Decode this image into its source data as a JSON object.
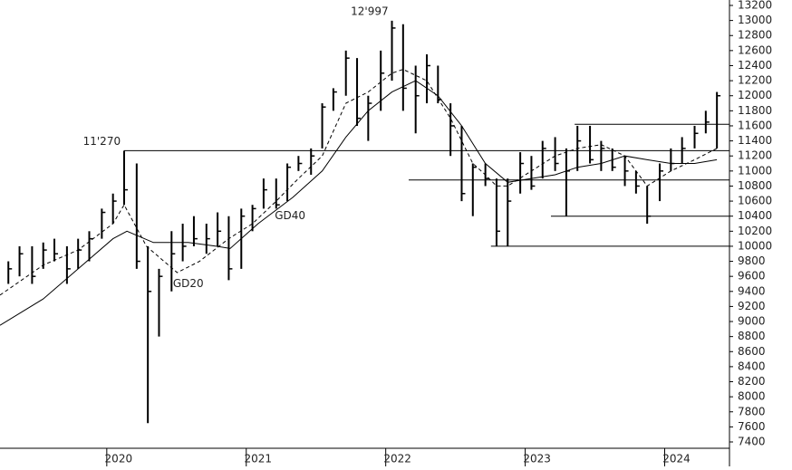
{
  "chart_data": {
    "type": "ohlc",
    "xlim": [
      2019.15,
      2024.38
    ],
    "xticks": [
      2020,
      2021,
      2022,
      2023,
      2024
    ],
    "ylim": [
      7400,
      13200
    ],
    "yticks": [
      7400,
      7600,
      7800,
      8000,
      8200,
      8400,
      8600,
      8800,
      9000,
      9200,
      9400,
      9600,
      9800,
      10000,
      10200,
      10400,
      10600,
      10800,
      11000,
      11200,
      11400,
      11600,
      11800,
      12000,
      12200,
      12400,
      12600,
      12800,
      13000,
      13200
    ],
    "color": "#000000",
    "x": [
      2019.21,
      2019.29,
      2019.38,
      2019.46,
      2019.54,
      2019.63,
      2019.71,
      2019.79,
      2019.88,
      2019.96,
      2020.04,
      2020.13,
      2020.21,
      2020.29,
      2020.38,
      2020.46,
      2020.54,
      2020.63,
      2020.71,
      2020.79,
      2020.88,
      2020.96,
      2021.04,
      2021.13,
      2021.21,
      2021.29,
      2021.38,
      2021.46,
      2021.54,
      2021.63,
      2021.71,
      2021.79,
      2021.88,
      2021.96,
      2022.04,
      2022.13,
      2022.21,
      2022.29,
      2022.38,
      2022.46,
      2022.54,
      2022.63,
      2022.71,
      2022.79,
      2022.88,
      2022.96,
      2023.04,
      2023.13,
      2023.21,
      2023.29,
      2023.38,
      2023.46,
      2023.54,
      2023.63,
      2023.71,
      2023.79,
      2023.88,
      2023.96,
      2024.04,
      2024.13,
      2024.21,
      2024.29
    ],
    "high": [
      9800,
      10000,
      10000,
      10050,
      10100,
      10000,
      10100,
      10200,
      10500,
      10700,
      11270,
      11100,
      10000,
      9700,
      10200,
      10300,
      10400,
      10300,
      10450,
      10400,
      10500,
      10550,
      10900,
      10900,
      11100,
      11200,
      11300,
      11900,
      12100,
      12600,
      12500,
      12000,
      12600,
      12997,
      12950,
      12400,
      12550,
      12400,
      11900,
      11600,
      11100,
      11100,
      10900,
      10900,
      11250,
      11200,
      11400,
      11450,
      11300,
      11600,
      11600,
      11400,
      11300,
      11200,
      11000,
      10800,
      11100,
      11300,
      11450,
      11600,
      11800,
      12050
    ],
    "low": [
      9500,
      9600,
      9500,
      9700,
      9800,
      9500,
      9700,
      9800,
      10100,
      10300,
      10550,
      9700,
      7650,
      8800,
      9400,
      9800,
      10000,
      9900,
      10000,
      9550,
      9700,
      10200,
      10500,
      10500,
      10600,
      11000,
      10950,
      11300,
      11800,
      12000,
      11600,
      11400,
      11800,
      12200,
      11800,
      11500,
      11900,
      11900,
      11200,
      10600,
      10400,
      10800,
      10000,
      10000,
      10700,
      10750,
      10900,
      11000,
      10400,
      11000,
      11100,
      11000,
      11000,
      10800,
      10700,
      10300,
      10600,
      11000,
      11100,
      11300,
      11500,
      11300
    ],
    "close": [
      9700,
      9900,
      9600,
      9950,
      9900,
      9700,
      9950,
      10100,
      10450,
      10600,
      10750,
      9800,
      9400,
      9600,
      9900,
      10000,
      10100,
      10100,
      10200,
      9700,
      10400,
      10500,
      10750,
      10550,
      11050,
      11100,
      11200,
      11850,
      12050,
      12500,
      11700,
      11900,
      12300,
      12900,
      12100,
      12000,
      12400,
      11950,
      11600,
      10700,
      11050,
      10900,
      10200,
      10600,
      11100,
      10800,
      11300,
      11100,
      11000,
      11400,
      11150,
      11300,
      11050,
      11000,
      10800,
      10400,
      11000,
      11100,
      11300,
      11500,
      11650,
      12000
    ],
    "series": [
      {
        "name": "GD20",
        "color": "#000000",
        "dashed": true,
        "label_x": 2020.5,
        "label_y": 9500,
        "x": [
          2019.15,
          2019.46,
          2019.71,
          2019.96,
          2020.04,
          2020.2,
          2020.42,
          2020.58,
          2020.79,
          2020.96,
          2021.13,
          2021.29,
          2021.46,
          2021.63,
          2021.79,
          2021.96,
          2022.04,
          2022.21,
          2022.38,
          2022.54,
          2022.63,
          2022.71,
          2022.79,
          2022.96,
          2023.13,
          2023.29,
          2023.46,
          2023.63,
          2023.79,
          2023.96,
          2024.13,
          2024.29
        ],
        "values": [
          9350,
          9750,
          9950,
          10300,
          10550,
          10000,
          9650,
          9800,
          10100,
          10300,
          10600,
          10900,
          11200,
          11900,
          12050,
          12300,
          12350,
          12200,
          11700,
          11100,
          10950,
          10800,
          10800,
          11000,
          11200,
          11300,
          11350,
          11200,
          10800,
          11000,
          11150,
          11300
        ]
      },
      {
        "name": "GD40",
        "color": "#000000",
        "dashed": false,
        "label_x": 2021.23,
        "label_y": 10400,
        "x": [
          2019.15,
          2019.46,
          2019.71,
          2019.96,
          2020.06,
          2020.25,
          2020.5,
          2020.7,
          2020.8,
          2021.0,
          2021.25,
          2021.46,
          2021.63,
          2021.79,
          2021.96,
          2022.13,
          2022.29,
          2022.46,
          2022.63,
          2022.79,
          2022.96,
          2023.13,
          2023.29,
          2023.46,
          2023.63,
          2023.79,
          2023.96,
          2024.13,
          2024.29
        ],
        "values": [
          8950,
          9300,
          9700,
          10100,
          10200,
          10050,
          10050,
          10000,
          9970,
          10300,
          10650,
          11000,
          11450,
          11800,
          12050,
          12200,
          12000,
          11600,
          11100,
          10850,
          10900,
          10950,
          11050,
          11100,
          11200,
          11150,
          11100,
          11100,
          11150
        ]
      }
    ],
    "levels": [
      {
        "value": 11270,
        "from": 2020.04
      },
      {
        "value": 11620,
        "from": 2023.27
      },
      {
        "value": 10880,
        "from": 2022.08
      },
      {
        "value": 10400,
        "from": 2023.1
      },
      {
        "value": 10000,
        "from": 2022.67
      }
    ],
    "annotations": [
      {
        "text": "11'270",
        "x": 2019.88,
        "y": 11270
      },
      {
        "text": "12'997",
        "x": 2021.8,
        "y": 12997
      }
    ]
  }
}
